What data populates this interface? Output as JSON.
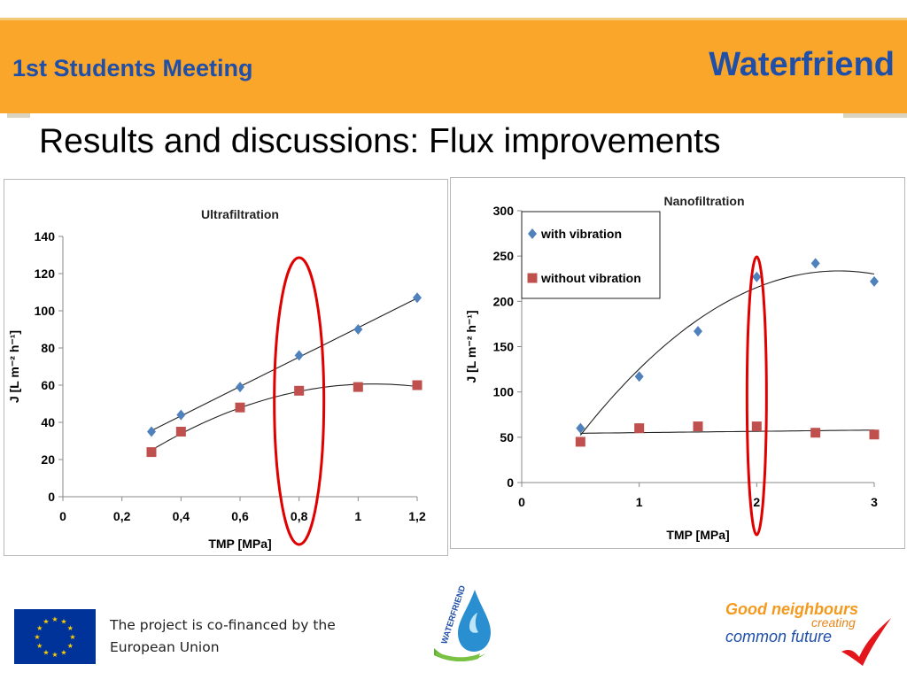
{
  "header": {
    "meeting": "1st Students Meeting",
    "brand": "Waterfriend"
  },
  "slide_title": "Results and discussions: Flux improvements",
  "footer": {
    "eu_text_line1": "The project is co-financed by the",
    "eu_text_line2": "European Union",
    "wf_logo_text": "WATERFRIEND",
    "gn_line1": "Good neighbours",
    "gn_line2": "creating",
    "gn_line3": "common future"
  },
  "colors": {
    "banner": "#f9a62a",
    "brand_blue": "#1f4fa8",
    "series_with": "#4f81bd",
    "series_without": "#c0504d",
    "highlight": "#e00000"
  },
  "chart_data": [
    {
      "type": "scatter",
      "title": "Ultrafiltration",
      "xlabel": "TMP [MPa]",
      "ylabel": "J [L m⁻² h⁻¹]",
      "xlim": [
        0,
        1.2
      ],
      "ylim": [
        0,
        140
      ],
      "x_ticks": [
        "0",
        "0,2",
        "0,4",
        "0,6",
        "0,8",
        "1",
        "1,2"
      ],
      "y_ticks": [
        "0",
        "20",
        "40",
        "60",
        "80",
        "100",
        "120",
        "140"
      ],
      "legend": null,
      "series": [
        {
          "marker": "diamond",
          "color": "#4f81bd",
          "x": [
            0.3,
            0.4,
            0.6,
            0.8,
            1.0,
            1.2
          ],
          "y": [
            35,
            44,
            59,
            76,
            90,
            107
          ],
          "trend": "linear"
        },
        {
          "marker": "square",
          "color": "#c0504d",
          "x": [
            0.3,
            0.4,
            0.6,
            0.8,
            1.0,
            1.2
          ],
          "y": [
            24,
            35,
            48,
            57,
            59,
            60
          ],
          "trend": "quadratic"
        }
      ],
      "highlight_x": 0.8
    },
    {
      "type": "scatter",
      "title": "Nanofiltration",
      "xlabel": "TMP [MPa]",
      "ylabel": "J [L m⁻² h⁻¹]",
      "xlim": [
        0,
        3
      ],
      "ylim": [
        0,
        300
      ],
      "x_ticks": [
        "0",
        "1",
        "2",
        "3"
      ],
      "y_ticks": [
        "0",
        "50",
        "100",
        "150",
        "200",
        "250",
        "300"
      ],
      "legend": "top-left",
      "series": [
        {
          "name": "with vibration",
          "marker": "diamond",
          "color": "#4f81bd",
          "x": [
            0.5,
            1.0,
            1.5,
            2.0,
            2.5,
            3.0
          ],
          "y": [
            60,
            117,
            167,
            227,
            242,
            222
          ],
          "trend": "quadratic"
        },
        {
          "name": "without vibration",
          "marker": "square",
          "color": "#c0504d",
          "x": [
            0.5,
            1.0,
            1.5,
            2.0,
            2.5,
            3.0
          ],
          "y": [
            45,
            60,
            62,
            62,
            55,
            53
          ],
          "trend": "linear"
        }
      ],
      "highlight_x": 2.0
    }
  ]
}
